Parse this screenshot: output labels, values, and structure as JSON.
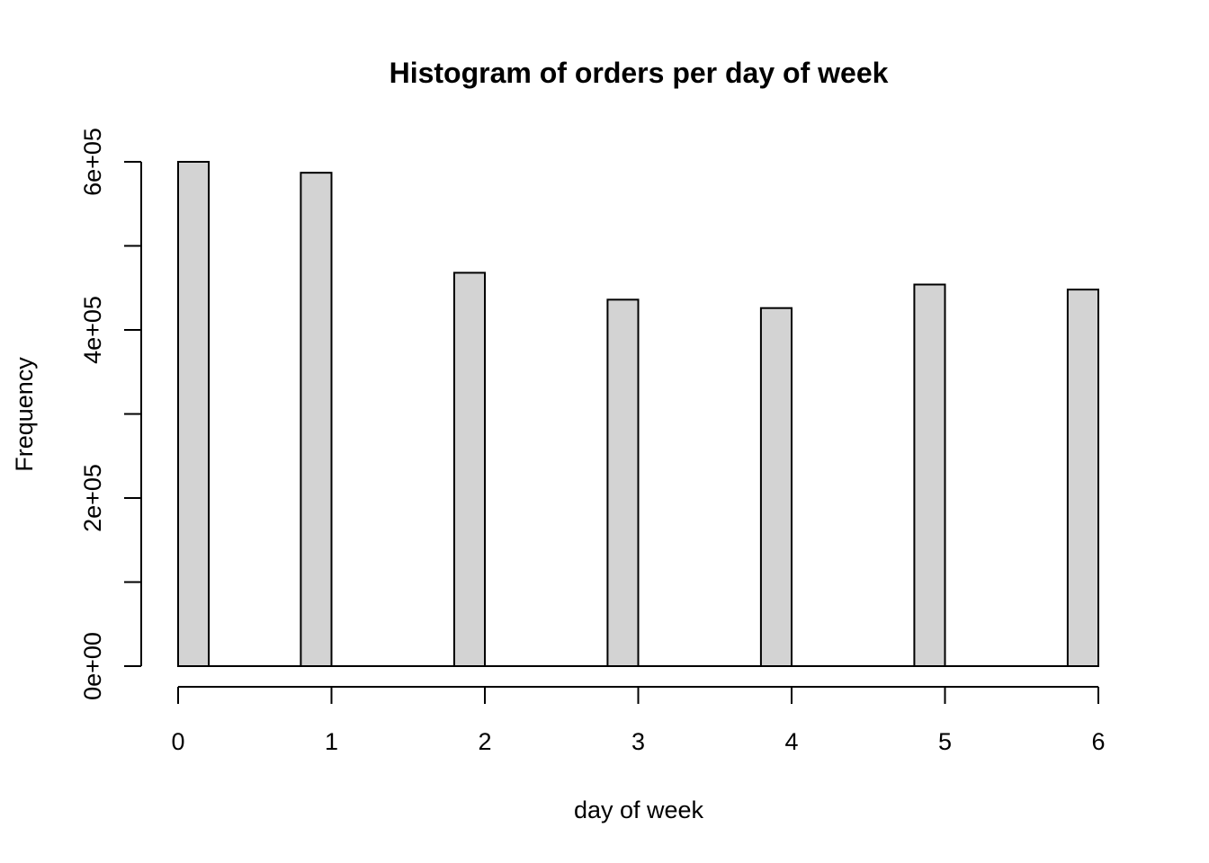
{
  "chart_data": {
    "type": "bar",
    "title": "Histogram of orders per day of week",
    "xlabel": "day of week",
    "ylabel": "Frequency",
    "x_ticks": [
      "0",
      "1",
      "2",
      "3",
      "4",
      "5",
      "6"
    ],
    "x_tick_values": [
      0,
      1,
      2,
      3,
      4,
      5,
      6
    ],
    "y_ticks": [
      "0e+00",
      "2e+05",
      "4e+05",
      "6e+05"
    ],
    "y_tick_values": [
      0,
      200000,
      400000,
      600000
    ],
    "y_minor_tick_values": [
      100000,
      300000,
      500000
    ],
    "xlim": [
      0,
      6
    ],
    "ylim": [
      0,
      600000
    ],
    "bins": [
      {
        "start": 0.0,
        "end": 0.2,
        "value": 600000
      },
      {
        "start": 0.8,
        "end": 1.0,
        "value": 587000
      },
      {
        "start": 1.8,
        "end": 2.0,
        "value": 468000
      },
      {
        "start": 2.8,
        "end": 3.0,
        "value": 436000
      },
      {
        "start": 3.8,
        "end": 4.0,
        "value": 426000
      },
      {
        "start": 4.8,
        "end": 5.0,
        "value": 454000
      },
      {
        "start": 5.8,
        "end": 6.0,
        "value": 448000
      }
    ],
    "bar_fill": "#d3d3d3",
    "bar_stroke": "#000000",
    "grid": false,
    "legend": "none"
  }
}
